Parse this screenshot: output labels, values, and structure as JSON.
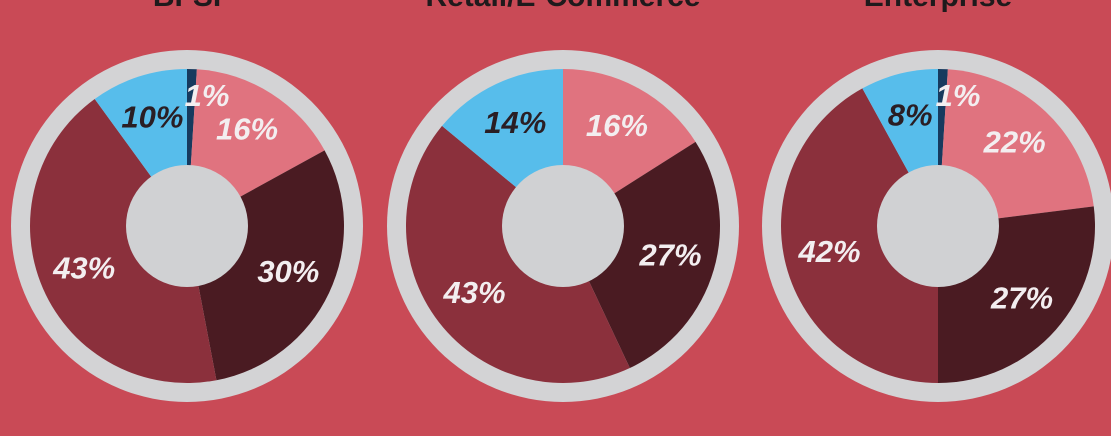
{
  "chart_data": [
    {
      "type": "pie",
      "title": "BFSI",
      "categories": [
        null,
        null,
        null,
        null,
        null
      ],
      "values": [
        1,
        16,
        30,
        43,
        10
      ],
      "value_labels": [
        "1%",
        "16%",
        "30%",
        "43%",
        "10%"
      ],
      "colors": [
        "#173a5e",
        "#e0737f",
        "#4a1b22",
        "#8b303c",
        "#57bdeb"
      ]
    },
    {
      "type": "pie",
      "title": "Retail/E-Commerce",
      "categories": [
        null,
        null,
        null,
        null
      ],
      "values": [
        16,
        27,
        43,
        14
      ],
      "value_labels": [
        "16%",
        "27%",
        "43%",
        "14%"
      ],
      "colors": [
        "#e0737f",
        "#4a1b22",
        "#8b303c",
        "#57bdeb"
      ]
    },
    {
      "type": "pie",
      "title": "Enterprise",
      "categories": [
        null,
        null,
        null,
        null,
        null
      ],
      "values": [
        1,
        22,
        27,
        42,
        8
      ],
      "value_labels": [
        "1%",
        "22%",
        "27%",
        "42%",
        "8%"
      ],
      "colors": [
        "#173a5e",
        "#e0737f",
        "#4a1b22",
        "#8b303c",
        "#57bdeb"
      ]
    }
  ]
}
